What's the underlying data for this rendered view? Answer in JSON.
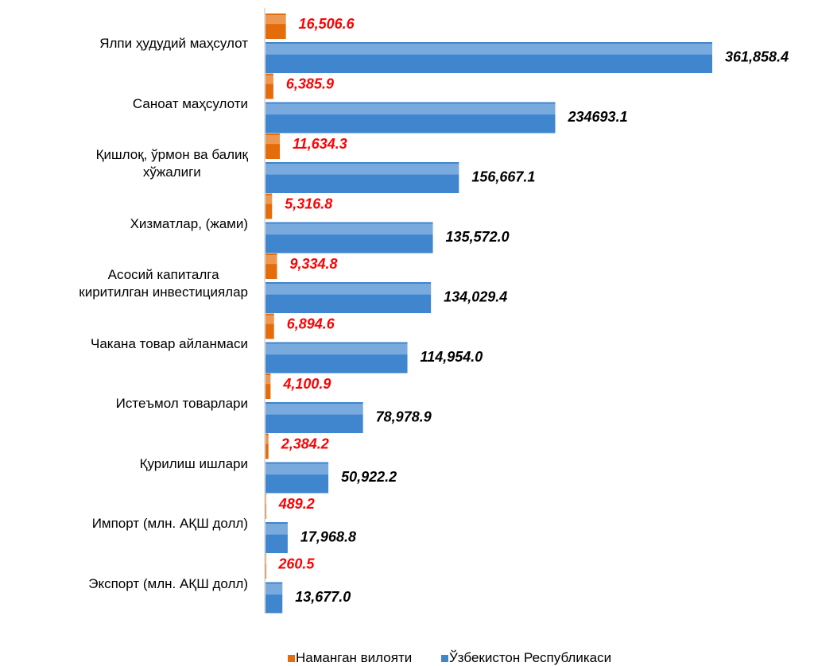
{
  "chart_data": {
    "type": "hbar",
    "categories": [
      "Ялпи ҳудудий маҳсулот",
      "Саноат маҳсулоти",
      "Қишлоқ, ўрмон ва балиқ\nхўжалиги",
      "Хизматлар, (жами)",
      "Асосий капиталга\nкиритилган инвестициялар",
      "Чакана товар айланмаси",
      "Истеъмол товарлари",
      "Қурилиш ишлари",
      "Импорт (млн. АҚШ долл)",
      "Экспорт (млн. АҚШ долл)"
    ],
    "series": [
      {
        "name": "Наманган вилояти",
        "color": "#e46c0a",
        "values": [
          16506.6,
          6385.9,
          11634.3,
          5316.8,
          9334.8,
          6894.6,
          4100.9,
          2384.2,
          489.2,
          260.5
        ],
        "value_labels": [
          "16,506.6",
          "6,385.9",
          "11,634.3",
          "5,316.8",
          "9,334.8",
          "6,894.6",
          "4,100.9",
          "2,384.2",
          "489.2",
          "260.5"
        ]
      },
      {
        "name": "Ўзбекистон Республикаси",
        "color": "#3f86cf",
        "values": [
          361858.4,
          234693.1,
          156667.1,
          135572.0,
          134029.4,
          114954.0,
          78978.9,
          50922.2,
          17968.8,
          13677.0
        ],
        "value_labels": [
          "361,858.4",
          "234693.1",
          "156,667.1",
          "135,572.0",
          "134,029.4",
          "114,954.0",
          "78,978.9",
          "50,922.2",
          "17,968.8",
          "13,677.0"
        ]
      }
    ],
    "legend": "bottom"
  }
}
